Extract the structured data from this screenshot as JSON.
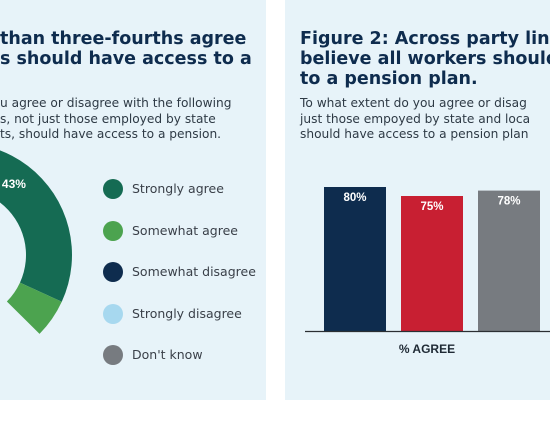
{
  "left_panel": {
    "title_line1": "than three-fourths agree",
    "title_line2": "s should have access to a",
    "question_line1": "u agree or disagree with the following",
    "question_line2": "s, not just those employed by state",
    "question_line3": "ts, should have access to a pension."
  },
  "right_panel": {
    "title_prefix": "Figure 2:",
    "title_line1_rest": " Across party lin",
    "title_line2": "believe all workers should",
    "title_line3": "to a pension plan.",
    "question_line1": "To what extent do you agree or disag",
    "question_line2": "just those empoyed by state and loca",
    "question_line3": "should have access to a pension plan"
  },
  "chart_data": [
    {
      "type": "pie",
      "style": "donut",
      "slices": [
        {
          "label": "Strongly agree",
          "value": 43,
          "color": "#156b53"
        },
        {
          "label": "Somewhat agree",
          "value": null,
          "color": "#4ca34f"
        },
        {
          "label": "Somewhat disagree",
          "value": null,
          "color": "#0e2c4e"
        },
        {
          "label": "Strongly disagree",
          "value": null,
          "color": "#a7d8ef"
        },
        {
          "label": "Don't know",
          "value": null,
          "color": "#777b80"
        }
      ],
      "data_labels": [
        "43%"
      ],
      "legend_placement": "right"
    },
    {
      "type": "bar",
      "categories": [
        "",
        "",
        ""
      ],
      "values": [
        80,
        75,
        78
      ],
      "data_labels": [
        "80%",
        "75%",
        "78%"
      ],
      "colors": [
        "#0e2c4e",
        "#c81f32",
        "#777b80"
      ],
      "xlabel": "% AGREE",
      "ylim": [
        0,
        100
      ],
      "grid": false
    }
  ]
}
